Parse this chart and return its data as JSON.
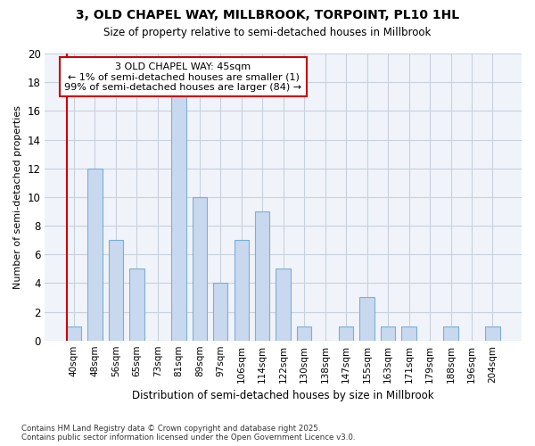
{
  "title1": "3, OLD CHAPEL WAY, MILLBROOK, TORPOINT, PL10 1HL",
  "title2": "Size of property relative to semi-detached houses in Millbrook",
  "xlabel": "Distribution of semi-detached houses by size in Millbrook",
  "ylabel": "Number of semi-detached properties",
  "categories": [
    "40sqm",
    "48sqm",
    "56sqm",
    "65sqm",
    "73sqm",
    "81sqm",
    "89sqm",
    "97sqm",
    "106sqm",
    "114sqm",
    "122sqm",
    "130sqm",
    "138sqm",
    "147sqm",
    "155sqm",
    "163sqm",
    "171sqm",
    "179sqm",
    "188sqm",
    "196sqm",
    "204sqm"
  ],
  "values": [
    1,
    12,
    7,
    5,
    0,
    17,
    10,
    4,
    7,
    9,
    5,
    1,
    0,
    1,
    3,
    1,
    1,
    0,
    1,
    0,
    1
  ],
  "highlight_index": 0,
  "bar_color": "#c8d8ee",
  "bar_edge_color": "#7bafd4",
  "highlight_bar_edge_color": "#cc0000",
  "annotation_box_color": "#ffffff",
  "annotation_border_color": "#cc0000",
  "annotation_text_line1": "3 OLD CHAPEL WAY: 45sqm",
  "annotation_text_line2": "← 1% of semi-detached houses are smaller (1)",
  "annotation_text_line3": "99% of semi-detached houses are larger (84) →",
  "plot_bg_color": "#f0f4fa",
  "figure_bg_color": "#ffffff",
  "grid_color": "#c8d0dc",
  "ylim": [
    0,
    20
  ],
  "yticks": [
    0,
    2,
    4,
    6,
    8,
    10,
    12,
    14,
    16,
    18,
    20
  ],
  "footer_line1": "Contains HM Land Registry data © Crown copyright and database right 2025.",
  "footer_line2": "Contains public sector information licensed under the Open Government Licence v3.0."
}
